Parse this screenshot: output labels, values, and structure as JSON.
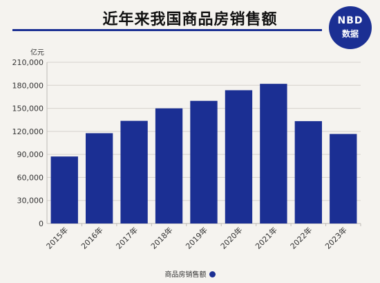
{
  "title": "近年来我国商品房销售额",
  "logo": {
    "line1": "NBD",
    "line2": "数据"
  },
  "colors": {
    "bar": "#1b2f93",
    "grid": "#d5d2cc",
    "axis": "#bdbab4",
    "tick_text": "#333333"
  },
  "chart_data": {
    "type": "bar",
    "unit": "亿元",
    "categories": [
      "2015年",
      "2016年",
      "2017年",
      "2018年",
      "2019年",
      "2020年",
      "2021年",
      "2022年",
      "2023年"
    ],
    "series": [
      {
        "name": "商品房销售额",
        "values": [
          87281,
          117627,
          133701,
          149973,
          159725,
          173613,
          181930,
          133308,
          116622
        ]
      }
    ],
    "ylim": [
      0,
      210000
    ],
    "yticks": [
      0,
      30000,
      60000,
      90000,
      120000,
      150000,
      180000,
      210000
    ],
    "ytick_labels": [
      "0",
      "30,000",
      "60,000",
      "90,000",
      "120,000",
      "150,000",
      "180,000",
      "210,000"
    ],
    "grid": true,
    "legend_position": "bottom-center"
  }
}
